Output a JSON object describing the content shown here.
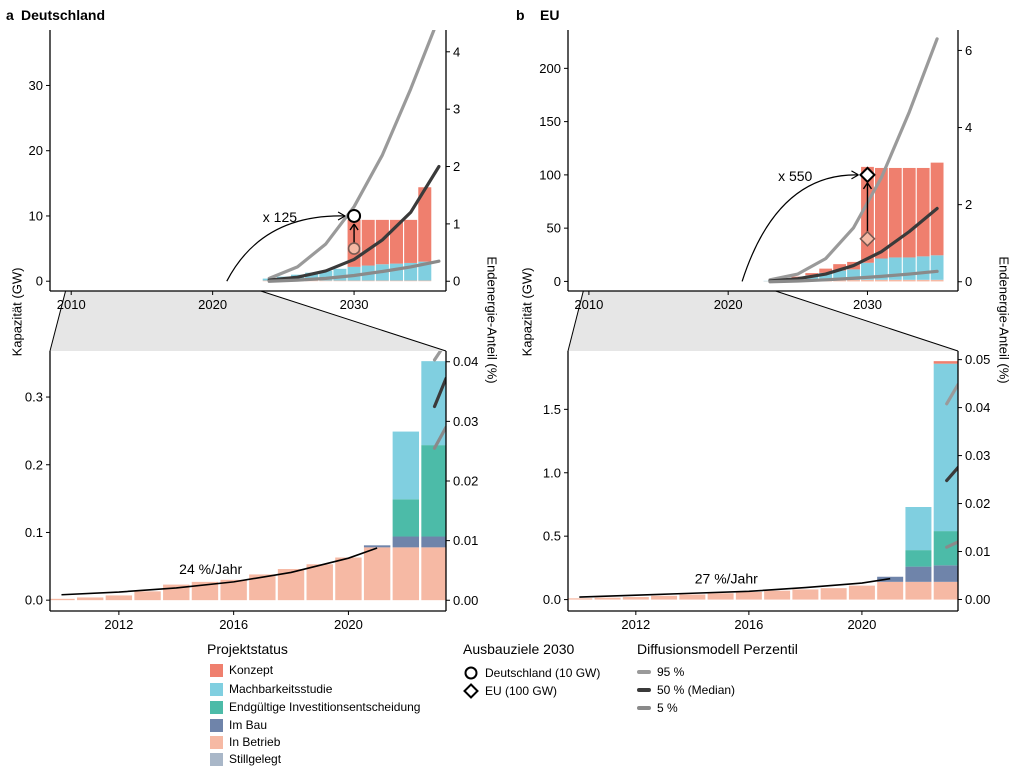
{
  "panels": {
    "a": {
      "tag": "a",
      "title": "Deutschland"
    },
    "b": {
      "tag": "b",
      "title": "EU"
    }
  },
  "axis_titles": {
    "left": "Kapazität (GW)",
    "right": "Endenergie-Anteil (%)"
  },
  "colors": {
    "Konzept": "#ef7f6e",
    "Machbarkeitsstudie": "#80cfe0",
    "Endgueltige": "#4cbba8",
    "ImBau": "#6f84aa",
    "InBetrieb": "#f6b9a4",
    "Stillgelegt": "#a9b7c8",
    "p95": "#9a9a9a",
    "p50": "#3a3a3a",
    "p5": "#8a8a8a",
    "zoom": "#e6e6e6"
  },
  "legend": {
    "status": {
      "title": "Projektstatus",
      "items": [
        "Konzept",
        "Machbarkeitsstudie",
        "Endgültige Investitionsentscheidung",
        "Im Bau",
        "In Betrieb",
        "Stillgelegt"
      ]
    },
    "targets": {
      "title": "Ausbauziele 2030",
      "items": [
        "Deutschland (10 GW)",
        "EU (100 GW)"
      ]
    },
    "diffusion": {
      "title": "Diffusionsmodell Perzentil",
      "items": [
        "95 %",
        "50 % (Median)",
        "5 %"
      ]
    }
  },
  "chart_data": [
    {
      "id": "a_top",
      "type": "bar",
      "title": "Deutschland",
      "ylabel": "Kapazität (GW)",
      "y2label": "Endenergie-Anteil (%)",
      "xlim": [
        2008.5,
        2036.5
      ],
      "ylim": [
        -1.5,
        38.5
      ],
      "y2lim": [
        -0.17,
        4.38
      ],
      "xticks": [
        2010,
        2020,
        2030
      ],
      "yticks": [
        0,
        10,
        20,
        30
      ],
      "y2ticks": [
        0,
        1,
        2,
        3,
        4
      ],
      "categories": [
        2024,
        2025,
        2026,
        2027,
        2028,
        2029,
        2030,
        2031,
        2032,
        2033,
        2034,
        2035
      ],
      "series": [
        {
          "name": "In Betrieb",
          "values": [
            0.1,
            0.1,
            0.1,
            0.1,
            0.1,
            0.1,
            0.1,
            0.1,
            0.1,
            0.1,
            0.1,
            0.1
          ]
        },
        {
          "name": "Machbarkeitsstudie",
          "values": [
            0.3,
            0.6,
            0.9,
            1.2,
            1.5,
            1.8,
            2.1,
            2.3,
            2.5,
            2.6,
            2.7,
            2.9
          ]
        },
        {
          "name": "Konzept",
          "values": [
            0,
            0,
            0,
            0,
            0,
            0,
            7.2,
            7.0,
            6.8,
            6.7,
            6.6,
            11.4
          ]
        }
      ],
      "curves": [
        {
          "name": "95 %",
          "x": [
            2024,
            2026,
            2028,
            2030,
            2032,
            2034,
            2036
          ],
          "y": [
            0.05,
            0.25,
            0.65,
            1.3,
            2.2,
            3.35,
            4.6
          ]
        },
        {
          "name": "50 % (Median)",
          "x": [
            2024,
            2026,
            2028,
            2030,
            2032,
            2034,
            2036
          ],
          "y": [
            0.02,
            0.07,
            0.18,
            0.38,
            0.72,
            1.2,
            2.0
          ]
        },
        {
          "name": "5 %",
          "x": [
            2024,
            2026,
            2028,
            2030,
            2032,
            2034,
            2036
          ],
          "y": [
            0.0,
            0.02,
            0.05,
            0.1,
            0.17,
            0.25,
            0.35
          ]
        }
      ],
      "target": {
        "year": 2030,
        "value": 10,
        "label": "Deutschland (10 GW)",
        "marker": "circle",
        "from_value": 5
      },
      "growth_arrow": {
        "label": "x 125",
        "from": [
          2021,
          0
        ],
        "to": [
          2030,
          10
        ]
      }
    },
    {
      "id": "a_bottom",
      "type": "bar",
      "ylabel": "Kapazität (GW)",
      "y2label": "Endenergie-Anteil (%)",
      "xlim": [
        2009.6,
        2023.4
      ],
      "ylim": [
        -0.016,
        0.368
      ],
      "y2lim": [
        -0.0018,
        0.0418
      ],
      "xticks": [
        2012,
        2016,
        2020
      ],
      "yticks": [
        0,
        0.1,
        0.2,
        0.3
      ],
      "y2ticks": [
        0,
        0.01,
        0.02,
        0.03,
        0.04
      ],
      "categories": [
        2010,
        2011,
        2012,
        2013,
        2014,
        2015,
        2016,
        2017,
        2018,
        2019,
        2020,
        2021,
        2022,
        2023
      ],
      "series": [
        {
          "name": "In Betrieb",
          "values": [
            0.002,
            0.004,
            0.007,
            0.013,
            0.023,
            0.027,
            0.03,
            0.038,
            0.046,
            0.053,
            0.063,
            0.078,
            0.078,
            0.078
          ]
        },
        {
          "name": "Im Bau",
          "values": [
            0,
            0,
            0,
            0,
            0,
            0,
            0,
            0,
            0,
            0,
            0,
            0.003,
            0.016,
            0.016
          ]
        },
        {
          "name": "Endgültige Investitionsentscheidung",
          "values": [
            0,
            0,
            0,
            0,
            0,
            0,
            0,
            0,
            0,
            0,
            0,
            0,
            0.055,
            0.135
          ]
        },
        {
          "name": "Machbarkeitsstudie",
          "values": [
            0,
            0,
            0,
            0,
            0,
            0,
            0,
            0,
            0,
            0,
            0,
            0,
            0.1,
            0.124
          ]
        }
      ],
      "growth_fit": {
        "label": "24 %/Jahr",
        "x": [
          2010,
          2012,
          2014,
          2016,
          2018,
          2020,
          2021
        ],
        "y": [
          0.008,
          0.012,
          0.018,
          0.027,
          0.041,
          0.062,
          0.077
        ]
      },
      "curves": [
        {
          "name": "95 %",
          "x": [
            2023.0,
            2023.4
          ],
          "y": [
            0.0403,
            0.0432
          ]
        },
        {
          "name": "50 % (Median)",
          "x": [
            2023.0,
            2023.4
          ],
          "y": [
            0.0325,
            0.0372
          ]
        },
        {
          "name": "5 %",
          "x": [
            2023.0,
            2023.4
          ],
          "y": [
            0.0255,
            0.029
          ]
        }
      ]
    },
    {
      "id": "b_top",
      "type": "bar",
      "title": "EU",
      "ylabel": "Kapazität (GW)",
      "y2label": "Endenergie-Anteil (%)",
      "xlim": [
        2008.5,
        2036.5
      ],
      "ylim": [
        -9,
        236
      ],
      "y2lim": [
        -0.24,
        6.53
      ],
      "xticks": [
        2010,
        2020,
        2030
      ],
      "yticks": [
        0,
        50,
        100,
        150,
        200
      ],
      "y2ticks": [
        0,
        2,
        4,
        6
      ],
      "categories": [
        2023,
        2024,
        2025,
        2026,
        2027,
        2028,
        2029,
        2030,
        2031,
        2032,
        2033,
        2034,
        2035
      ],
      "series": [
        {
          "name": "In Betrieb",
          "values": [
            0.2,
            0.3,
            0.5,
            0.8,
            1.0,
            1.2,
            1.3,
            1.5,
            1.5,
            1.5,
            1.5,
            1.5,
            1.5
          ]
        },
        {
          "name": "Machbarkeitsstudie",
          "values": [
            0.3,
            1,
            3,
            5,
            7,
            9,
            10,
            16,
            20,
            21,
            21,
            22,
            23
          ]
        },
        {
          "name": "Konzept",
          "values": [
            0,
            0.5,
            1,
            2,
            4,
            6,
            7,
            90,
            85,
            84,
            84,
            83,
            87
          ]
        }
      ],
      "curves": [
        {
          "name": "95 %",
          "x": [
            2023,
            2025,
            2027,
            2029,
            2031,
            2033,
            2035
          ],
          "y": [
            0.05,
            0.2,
            0.6,
            1.4,
            2.7,
            4.4,
            6.3
          ]
        },
        {
          "name": "50 % (Median)",
          "x": [
            2023,
            2025,
            2027,
            2029,
            2031,
            2033,
            2035
          ],
          "y": [
            0.02,
            0.08,
            0.2,
            0.42,
            0.78,
            1.3,
            1.9
          ]
        },
        {
          "name": "5 %",
          "x": [
            2023,
            2025,
            2027,
            2029,
            2031,
            2033,
            2035
          ],
          "y": [
            0.0,
            0.02,
            0.05,
            0.09,
            0.14,
            0.2,
            0.27
          ]
        }
      ],
      "target": {
        "year": 2030,
        "value": 100,
        "label": "EU (100 GW)",
        "marker": "diamond",
        "from_value": 40
      },
      "growth_arrow": {
        "label": "x 550",
        "from": [
          2021,
          0
        ],
        "to": [
          2030,
          100
        ]
      }
    },
    {
      "id": "b_bottom",
      "type": "bar",
      "ylabel": "Kapazität (GW)",
      "y2label": "Endenergie-Anteil (%)",
      "xlim": [
        2009.6,
        2023.4
      ],
      "ylim": [
        -0.09,
        1.96
      ],
      "y2lim": [
        -0.0024,
        0.0518
      ],
      "xticks": [
        2012,
        2016,
        2020
      ],
      "yticks": [
        0,
        0.5,
        1.0,
        1.5
      ],
      "y2ticks": [
        0,
        0.01,
        0.02,
        0.03,
        0.04,
        0.05
      ],
      "categories": [
        2010,
        2011,
        2012,
        2013,
        2014,
        2015,
        2016,
        2017,
        2018,
        2019,
        2020,
        2021,
        2022,
        2023
      ],
      "series": [
        {
          "name": "In Betrieb",
          "values": [
            0.01,
            0.015,
            0.02,
            0.03,
            0.04,
            0.05,
            0.06,
            0.07,
            0.08,
            0.09,
            0.11,
            0.14,
            0.14,
            0.14
          ]
        },
        {
          "name": "Im Bau",
          "values": [
            0,
            0,
            0,
            0,
            0,
            0,
            0,
            0,
            0,
            0,
            0,
            0.04,
            0.12,
            0.13
          ]
        },
        {
          "name": "Endgültige Investitionsentscheidung",
          "values": [
            0,
            0,
            0,
            0,
            0,
            0,
            0,
            0,
            0,
            0,
            0,
            0,
            0.13,
            0.27
          ]
        },
        {
          "name": "Machbarkeitsstudie",
          "values": [
            0,
            0,
            0,
            0,
            0,
            0,
            0,
            0,
            0,
            0,
            0,
            0,
            0.34,
            1.32
          ]
        },
        {
          "name": "Konzept",
          "values": [
            0,
            0,
            0,
            0,
            0,
            0,
            0,
            0,
            0,
            0,
            0,
            0,
            0,
            0.02
          ]
        }
      ],
      "growth_fit": {
        "label": "27 %/Jahr",
        "x": [
          2010,
          2012,
          2014,
          2016,
          2018,
          2020,
          2021
        ],
        "y": [
          0.02,
          0.035,
          0.05,
          0.065,
          0.095,
          0.13,
          0.165
        ]
      },
      "curves": [
        {
          "name": "95 %",
          "x": [
            2023.0,
            2023.4
          ],
          "y": [
            0.0408,
            0.0448
          ]
        },
        {
          "name": "50 % (Median)",
          "x": [
            2023.0,
            2023.4
          ],
          "y": [
            0.0248,
            0.0275
          ]
        },
        {
          "name": "5 %",
          "x": [
            2023.0,
            2023.4
          ],
          "y": [
            0.0109,
            0.012
          ]
        }
      ]
    }
  ]
}
